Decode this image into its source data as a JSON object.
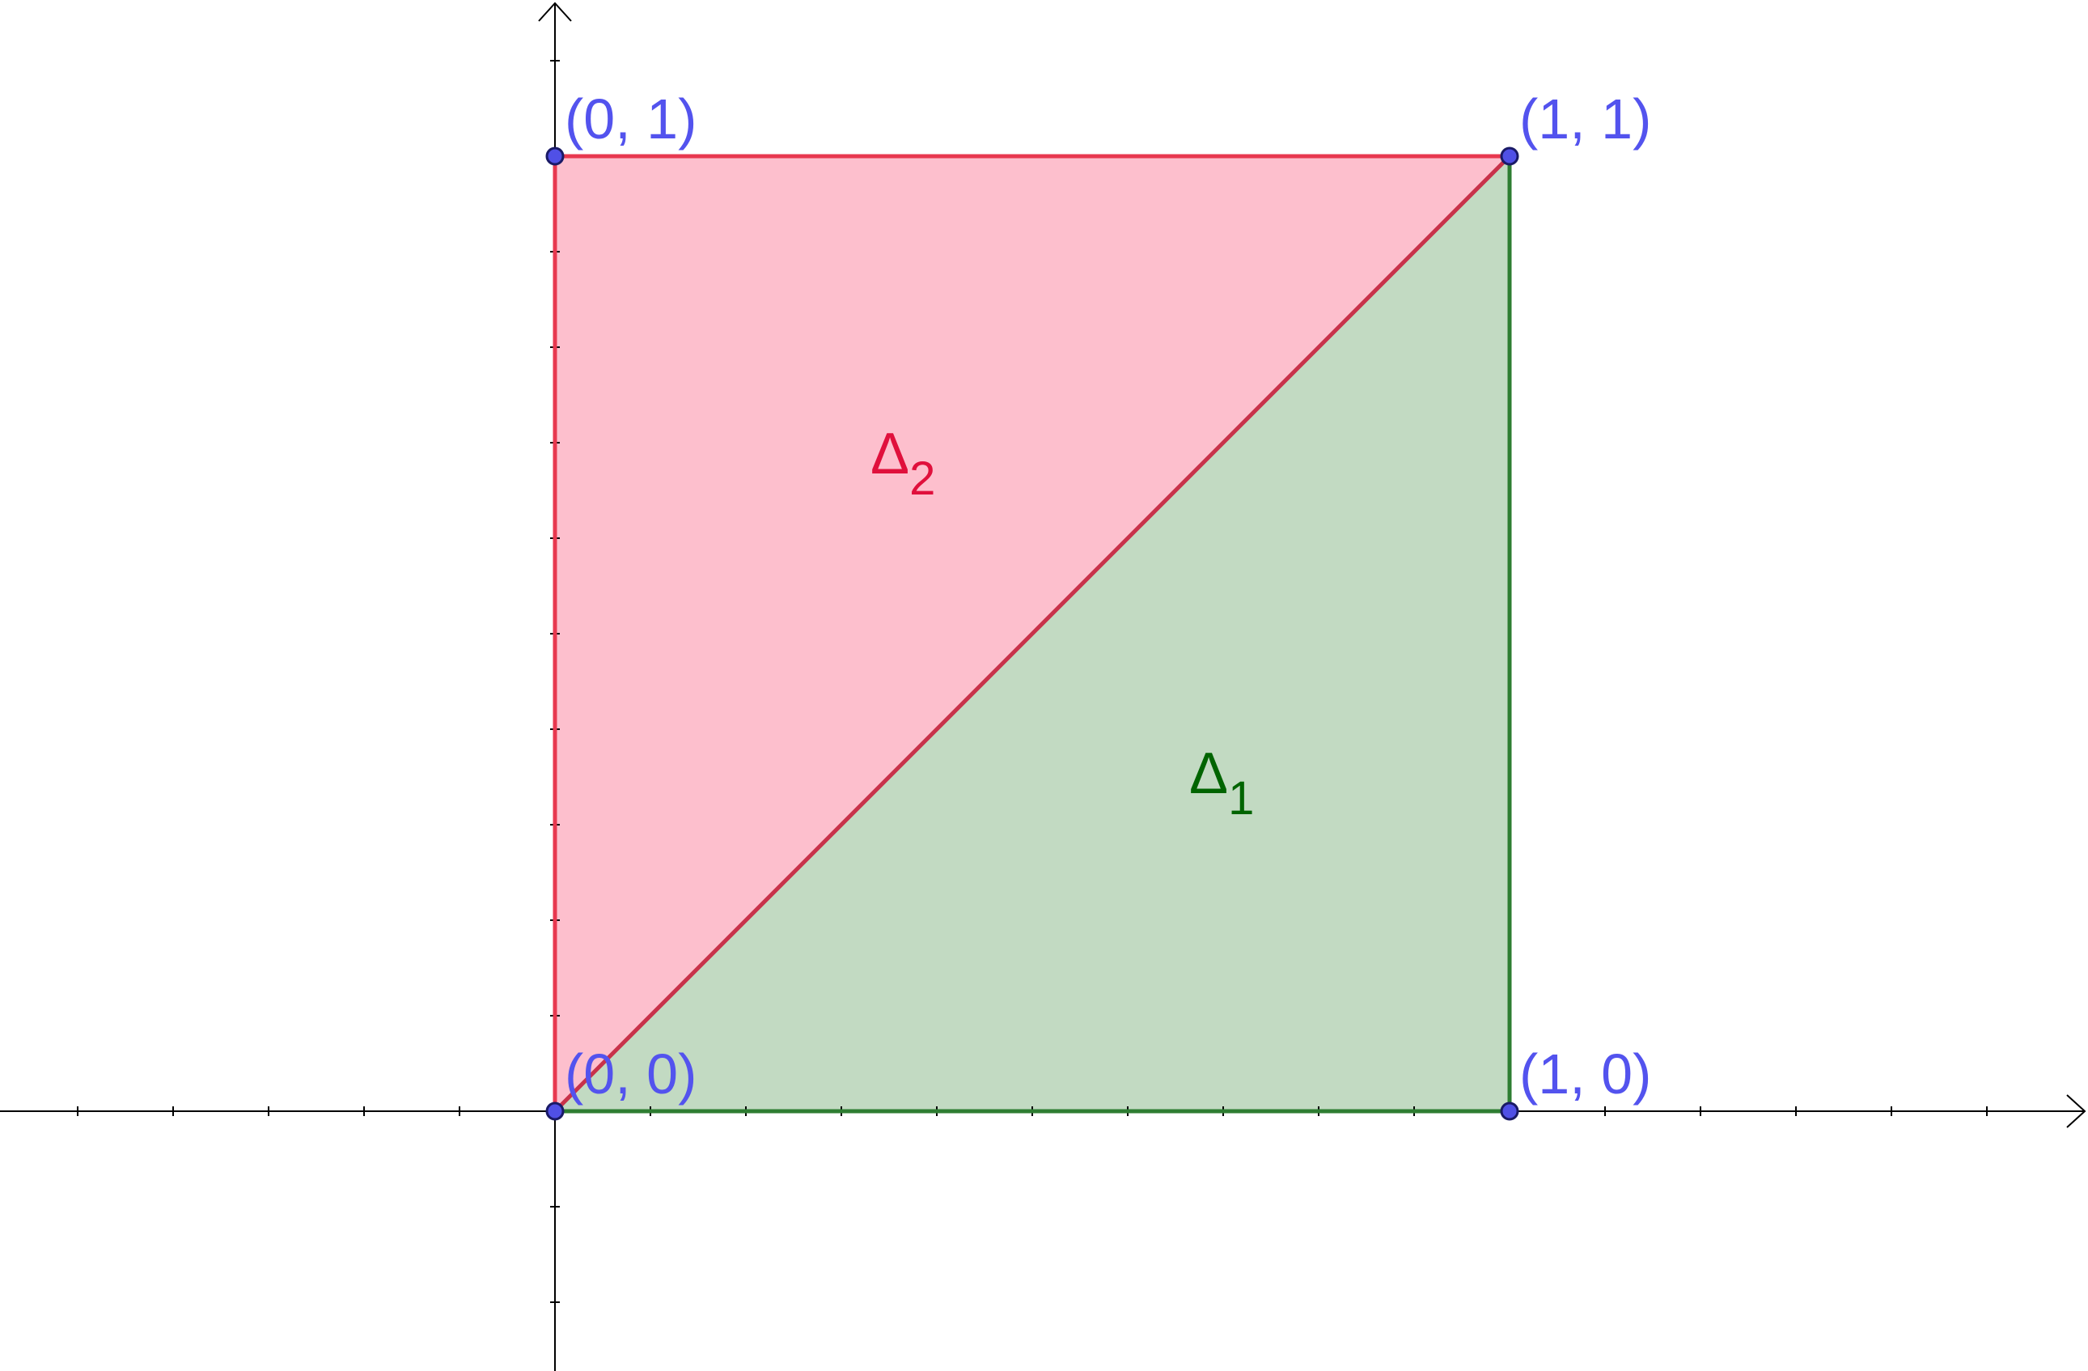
{
  "colors": {
    "background": "#ffffff",
    "axis": "#000000",
    "point_fill": "#5050e6",
    "point_stroke": "#1a1a66",
    "point_label": "#5353ee",
    "delta1_fill": "#c2dac2",
    "delta1_edge": "#2e7d32",
    "delta1_label": "#006400",
    "delta2_fill": "#fdbfcd",
    "delta2_edge": "#e8384f",
    "delta2_label": "#e0103c",
    "diagonal": "#c8324a"
  },
  "axes": {
    "x_arrow": true,
    "y_arrow": true,
    "tick_step": 0.1,
    "tick_labels": false
  },
  "points": [
    {
      "id": "p00",
      "x": 0,
      "y": 0,
      "label": "(0, 0)"
    },
    {
      "id": "p10",
      "x": 1,
      "y": 0,
      "label": "(1, 0)"
    },
    {
      "id": "p01",
      "x": 0,
      "y": 1,
      "label": "(0, 1)"
    },
    {
      "id": "p11",
      "x": 1,
      "y": 1,
      "label": "(1, 1)"
    }
  ],
  "regions": {
    "delta1": {
      "symbol": "Δ",
      "subscript": "1",
      "vertices": [
        [
          0,
          0
        ],
        [
          1,
          0
        ],
        [
          1,
          1
        ]
      ]
    },
    "delta2": {
      "symbol": "Δ",
      "subscript": "2",
      "vertices": [
        [
          0,
          0
        ],
        [
          0,
          1
        ],
        [
          1,
          1
        ]
      ]
    }
  }
}
